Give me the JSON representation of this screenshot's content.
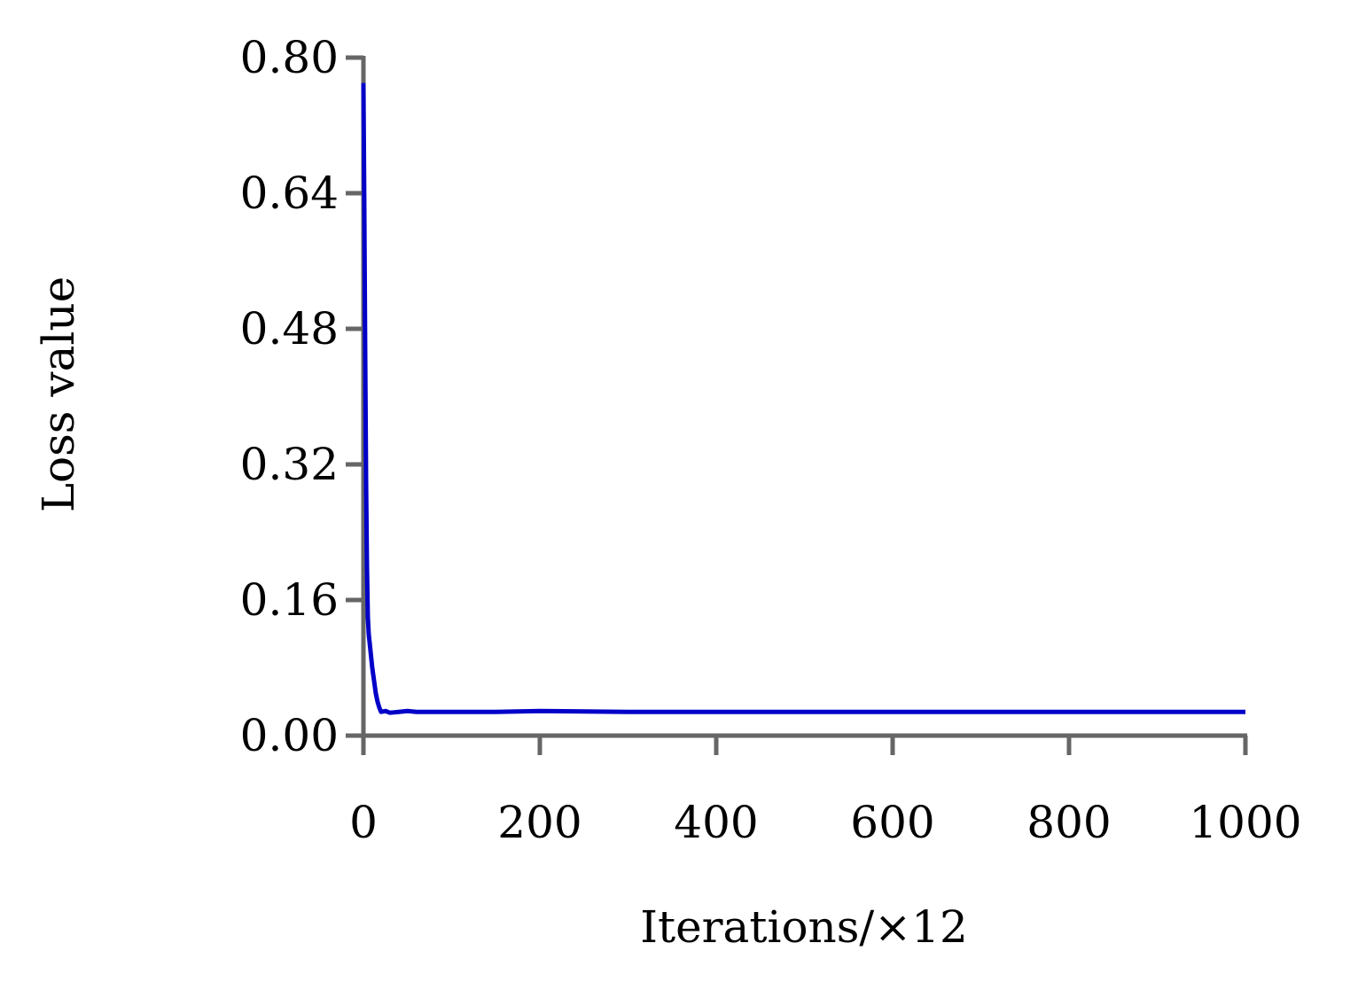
{
  "chart_data": {
    "type": "line",
    "x_label": "Iterations/×12",
    "y_label": "Loss value",
    "x": [
      0,
      1,
      2,
      3,
      4,
      5,
      6,
      7,
      8,
      9,
      10,
      12,
      14,
      16,
      18,
      20,
      25,
      30,
      40,
      50,
      60,
      80,
      100,
      150,
      200,
      300,
      400,
      500,
      600,
      700,
      800,
      900,
      1000
    ],
    "series": [
      {
        "color": "#0000c8",
        "values": [
          0.77,
          0.62,
          0.45,
          0.3,
          0.2,
          0.14,
          0.12,
          0.11,
          0.1,
          0.09,
          0.08,
          0.065,
          0.05,
          0.04,
          0.033,
          0.028,
          0.029,
          0.027,
          0.028,
          0.029,
          0.028,
          0.028,
          0.028,
          0.028,
          0.029,
          0.028,
          0.028,
          0.028,
          0.028,
          0.028,
          0.028,
          0.028,
          0.028
        ]
      }
    ],
    "xlim": [
      0,
      1000
    ],
    "xticks": [
      0,
      200,
      400,
      600,
      800,
      1000
    ],
    "ylim": [
      0,
      0.8
    ],
    "yticks": [
      {
        "value": 0,
        "label": "0.00"
      },
      0.16,
      0.32,
      0.48,
      0.64,
      {
        "value": 0.8,
        "label": "0.80"
      }
    ],
    "grid": false
  }
}
